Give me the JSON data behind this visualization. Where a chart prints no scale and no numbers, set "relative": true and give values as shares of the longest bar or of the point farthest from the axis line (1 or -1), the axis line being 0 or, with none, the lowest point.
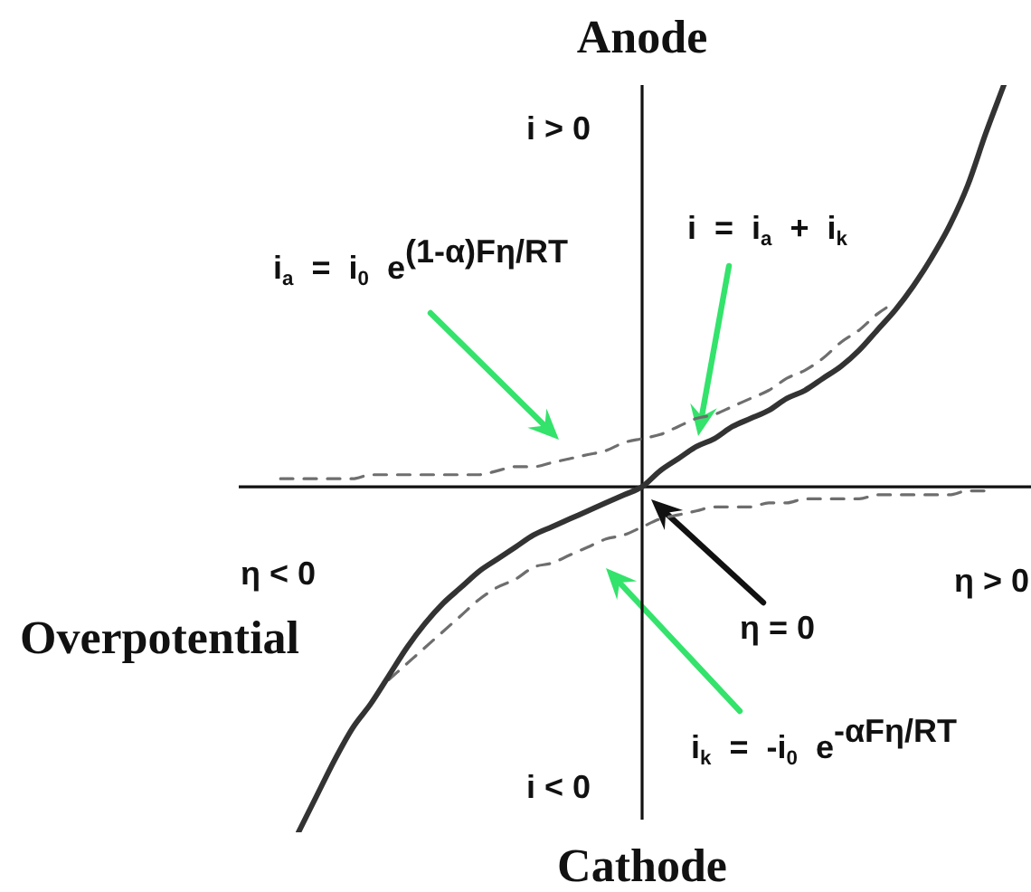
{
  "chart_data": {
    "type": "line",
    "relative": true,
    "marker": "none",
    "xlabel": "Overpotential",
    "categories": [
      null,
      null,
      null,
      null,
      null,
      null,
      null,
      null,
      null,
      null,
      null,
      null,
      null,
      null,
      null,
      null,
      null,
      null,
      null,
      null,
      null,
      null,
      null,
      null,
      null,
      null,
      null,
      null,
      null,
      null,
      null,
      null,
      null,
      null,
      null,
      null,
      null,
      null,
      null,
      null,
      null
    ],
    "series": [
      {
        "color": "#333333",
        "line_style": "solid",
        "values": [
          null,
          -0.86,
          -0.77,
          -0.68,
          -0.6,
          -0.54,
          -0.47,
          -0.4,
          -0.34,
          -0.29,
          -0.25,
          -0.21,
          -0.18,
          -0.15,
          -0.12,
          -0.1,
          -0.08,
          -0.06,
          -0.04,
          -0.02,
          0,
          0.04,
          0.07,
          0.1,
          0.12,
          0.15,
          0.17,
          0.19,
          0.22,
          0.24,
          0.27,
          0.3,
          0.34,
          0.39,
          0.44,
          0.5,
          0.57,
          0.65,
          0.75,
          0.88,
          1
        ]
      },
      {
        "color": "#6e6e6e",
        "line_style": "dashed",
        "values": [
          0.02,
          0.02,
          0.02,
          0.02,
          0.02,
          0.03,
          0.03,
          0.03,
          0.03,
          0.03,
          0.03,
          0.03,
          0.04,
          0.05,
          0.05,
          0.06,
          0.07,
          0.08,
          0.09,
          0.11,
          0.12,
          0.13,
          0.15,
          0.17,
          0.18,
          0.2,
          0.22,
          0.24,
          0.27,
          0.29,
          0.32,
          0.36,
          0.39,
          0.43,
          0.46,
          null,
          null,
          null,
          null,
          null,
          null
        ]
      },
      {
        "color": "#6e6e6e",
        "line_style": "dashed",
        "values": [
          null,
          null,
          null,
          null,
          null,
          null,
          -0.48,
          -0.44,
          -0.4,
          -0.36,
          -0.32,
          -0.28,
          -0.25,
          -0.23,
          -0.2,
          -0.19,
          -0.17,
          -0.15,
          -0.13,
          -0.12,
          -0.1,
          -0.08,
          -0.07,
          -0.06,
          -0.05,
          -0.05,
          -0.05,
          -0.04,
          -0.04,
          -0.03,
          -0.03,
          -0.03,
          -0.03,
          -0.02,
          -0.02,
          -0.02,
          -0.02,
          -0.02,
          -0.01,
          -0.01,
          null
        ]
      }
    ],
    "annotations": [
      "Anode",
      "i > 0",
      "i$_{a}$ = i$_{0}$ e$^{(1-α)Fη/RT}$",
      "i = i$_{a}$ + i$_{k}$",
      "η < 0",
      "η > 0",
      "η = 0",
      "i$_{k}$ = -i$_{0}$ e$^{-αFη/RT}$",
      "i < 0",
      "Cathode"
    ]
  }
}
